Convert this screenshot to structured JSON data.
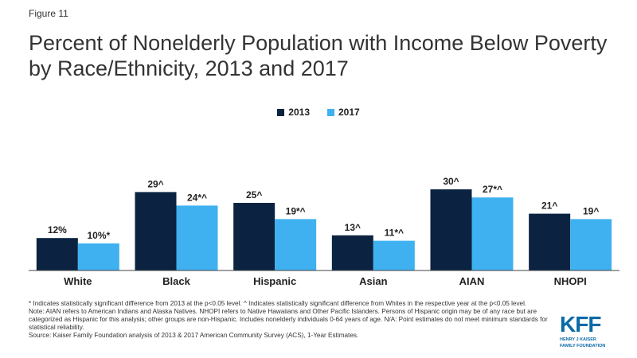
{
  "figure_label": "Figure 11",
  "title": "Percent of Nonelderly Population with Income Below Poverty by Race/Ethnicity, 2013 and 2017",
  "colors": {
    "s2013": "#0b2341",
    "s2017": "#3fb1f0",
    "axis": "#444444"
  },
  "chart_data": {
    "type": "bar",
    "title": "Percent of Nonelderly Population with Income Below Poverty by Race/Ethnicity, 2013 and 2017",
    "xlabel": "",
    "ylabel": "",
    "ylim": [
      0,
      50
    ],
    "grid": false,
    "legend_position": "top-center",
    "categories": [
      "White",
      "Black",
      "Hispanic",
      "Asian",
      "AIAN",
      "NHOPI"
    ],
    "series": [
      {
        "name": "2013",
        "values": [
          12,
          29,
          25,
          13,
          30,
          21
        ],
        "labels": [
          "12%",
          "29^",
          "25^",
          "13^",
          "30^",
          "21^"
        ]
      },
      {
        "name": "2017",
        "values": [
          10,
          24,
          19,
          11,
          27,
          19
        ],
        "labels": [
          "10%*",
          "24*^",
          "19*^",
          "11*^",
          "27*^",
          "19^"
        ]
      }
    ]
  },
  "notes": [
    "* Indicates statistically significant difference from 2013 at the p<0.05 level. ^ Indicates statistically significant difference from Whites in the respective year at the p<0.05 level.",
    "Note: AIAN refers to American Indians and Alaska Natives. NHOPI refers to Native Hawaiians and Other Pacific Islanders. Persons of Hispanic origin may be of any race but are categorized as Hispanic for this analysis; other groups are non-Hispanic. Includes nonelderly individuals 0-64 years of age. N/A: Point estimates do not meet minimum standards for statistical reliability.",
    "Source: Kaiser Family Foundation analysis of 2013 & 2017 American Community Survey (ACS), 1-Year Estimates."
  ],
  "logo": {
    "main": "KFF",
    "sub_line1": "HENRY J KAISER",
    "sub_line2": "FAMILY FOUNDATION"
  }
}
